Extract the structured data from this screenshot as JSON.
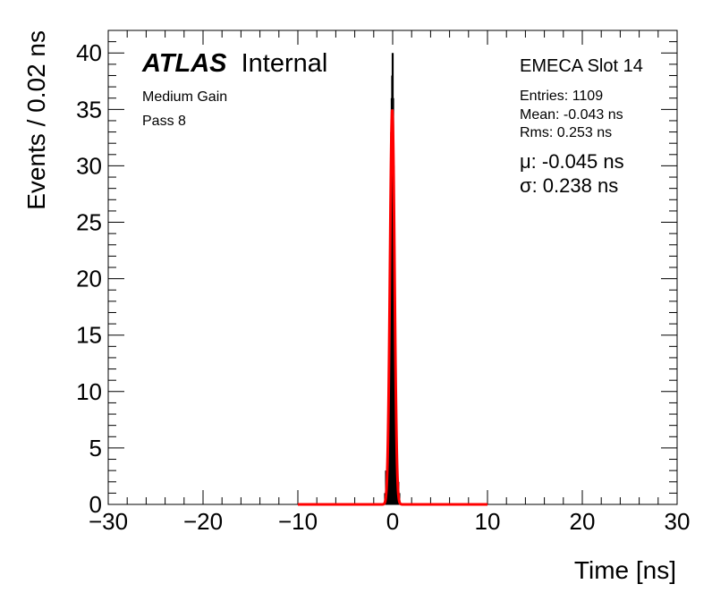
{
  "chart_data": {
    "type": "histogram",
    "title": "",
    "xlabel": "Time [ns]",
    "ylabel": "Events / 0.02 ns",
    "xlim": [
      -30,
      30
    ],
    "ylim": [
      0,
      42
    ],
    "x_ticks": [
      -30,
      -20,
      -10,
      0,
      10,
      20,
      30
    ],
    "x_tick_labels": [
      "−30",
      "−20",
      "−10",
      "0",
      "10",
      "20",
      "30"
    ],
    "y_ticks": [
      0,
      5,
      10,
      15,
      20,
      25,
      30,
      35,
      40
    ],
    "y_tick_labels": [
      "0",
      "5",
      "10",
      "15",
      "20",
      "25",
      "30",
      "35",
      "40"
    ],
    "grid": false,
    "bin_width": 0.02,
    "histogram": {
      "bin_centers": [
        -0.8,
        -0.7,
        -0.6,
        -0.5,
        -0.4,
        -0.3,
        -0.25,
        -0.2,
        -0.15,
        -0.1,
        -0.05,
        0.0,
        0.05,
        0.1,
        0.15,
        0.2,
        0.3,
        0.4,
        0.5,
        0.6,
        0.7
      ],
      "counts": [
        1,
        3,
        2,
        6,
        9,
        16,
        22,
        28,
        33,
        36,
        38,
        40,
        36,
        30,
        24,
        18,
        11,
        6,
        3,
        2,
        1
      ],
      "color": "#000000"
    },
    "fit": {
      "function": "gaussian",
      "mu": -0.045,
      "sigma": 0.238,
      "amplitude": 35,
      "x_range": [
        -10,
        10
      ],
      "color": "#ff0000"
    },
    "annotations": {
      "atlas": "ATLAS",
      "atlas_suffix": "Internal",
      "gain": "Medium Gain",
      "pass": "Pass 8",
      "slot": "EMECA Slot 14",
      "entries": "Entries: 1109",
      "mean": "Mean: -0.043 ns",
      "rms": "Rms: 0.253 ns",
      "mu_label": "μ: -0.045 ns",
      "sigma_label": "σ: 0.238 ns"
    }
  }
}
